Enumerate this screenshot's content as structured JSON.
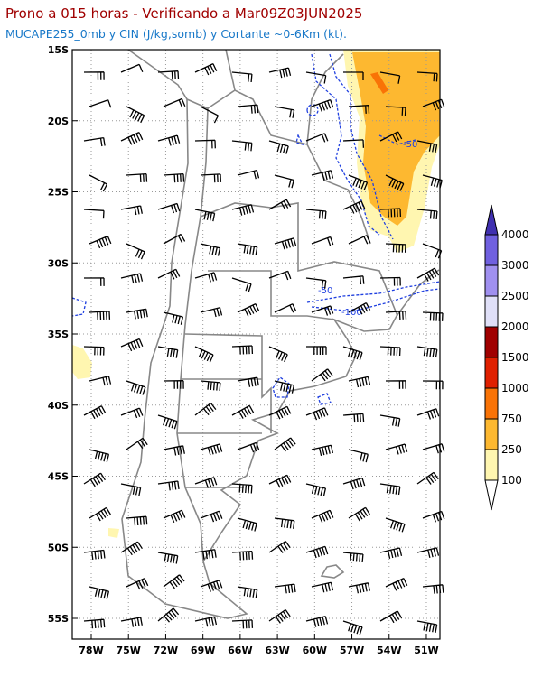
{
  "header": {
    "title": "Prono a 015 horas - Verificando a Mar09Z03JUN2025",
    "subtitle": "MUCAPE255_0mb y CIN (J/kg,somb) y Cortante ~0-6Km (kt)."
  },
  "map": {
    "lat_labels": [
      "15S",
      "20S",
      "25S",
      "30S",
      "35S",
      "40S",
      "45S",
      "50S",
      "55S"
    ],
    "lon_labels": [
      "78W",
      "75W",
      "72W",
      "69W",
      "66W",
      "63W",
      "60W",
      "57W",
      "54W",
      "51W"
    ],
    "contour_labels": [
      "-50",
      "-50",
      "-100"
    ]
  },
  "colorbar": {
    "labels": [
      "100",
      "250",
      "750",
      "1000",
      "1500",
      "2000",
      "2500",
      "3000",
      "4000"
    ]
  }
}
